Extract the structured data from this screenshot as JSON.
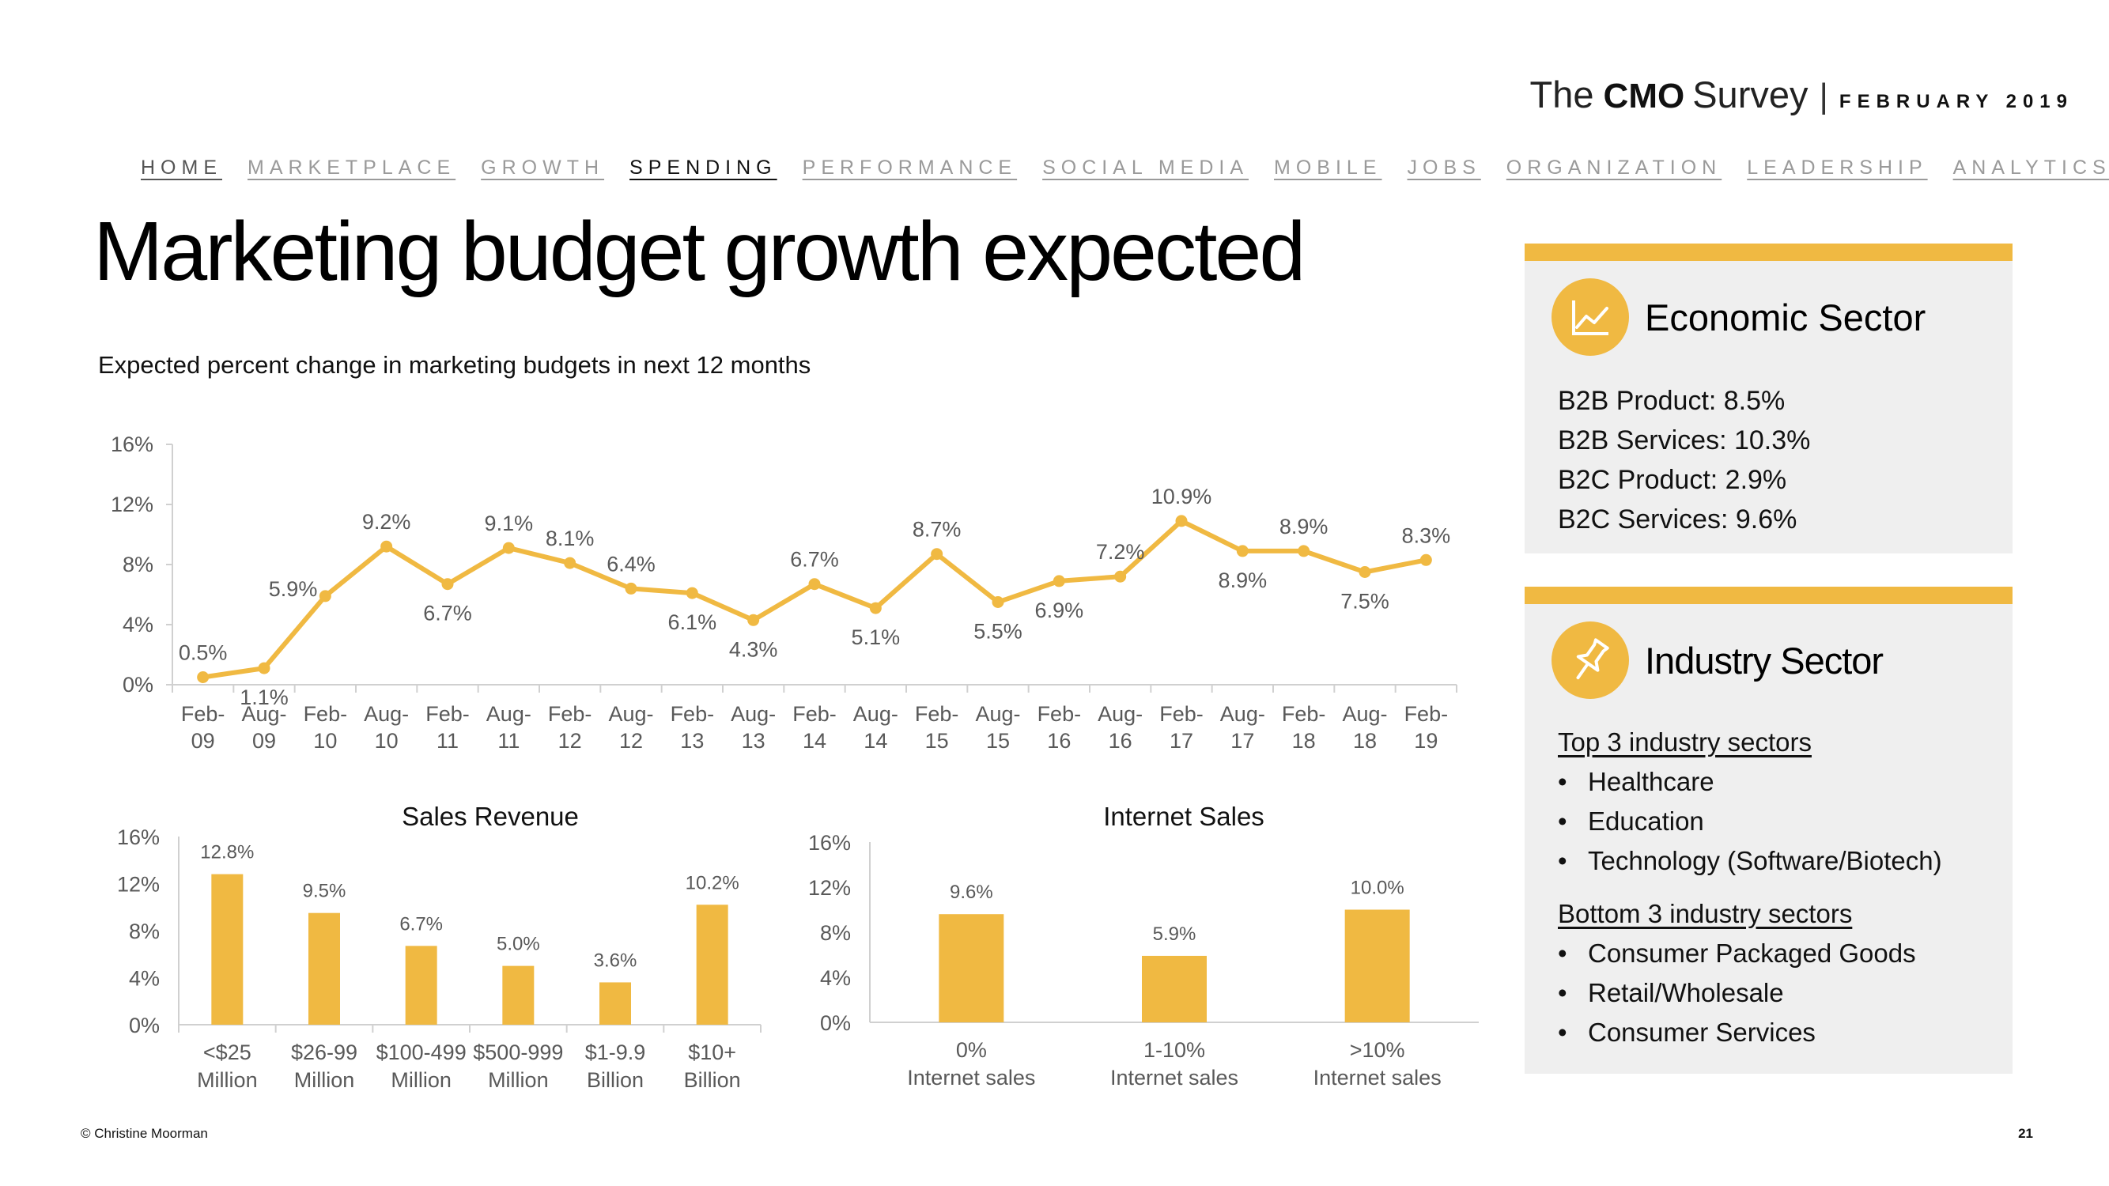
{
  "brand": {
    "the": "The",
    "cmo": "CMO",
    "survey": "Survey",
    "separator": "|",
    "date": "FEBRUARY 2019"
  },
  "nav": [
    "HOME",
    "MARKETPLACE",
    "GROWTH",
    "SPENDING",
    "PERFORMANCE",
    "SOCIAL MEDIA",
    "MOBILE",
    "JOBS",
    "ORGANIZATION",
    "LEADERSHIP",
    "ANALYTICS"
  ],
  "nav_active": "SPENDING",
  "title": "Marketing budget growth expected",
  "subtitle": "Expected percent change in marketing budgets in next 12 months",
  "colors": {
    "accent": "#f0b942",
    "panel": "#efefef",
    "axis": "#d0d0d0",
    "label": "#595959"
  },
  "chart_data": [
    {
      "type": "line",
      "title": "",
      "categories": [
        [
          "Feb-",
          "09"
        ],
        [
          "Aug-",
          "09"
        ],
        [
          "Feb-",
          "10"
        ],
        [
          "Aug-",
          "10"
        ],
        [
          "Feb-",
          "11"
        ],
        [
          "Aug-",
          "11"
        ],
        [
          "Feb-",
          "12"
        ],
        [
          "Aug-",
          "12"
        ],
        [
          "Feb-",
          "13"
        ],
        [
          "Aug-",
          "13"
        ],
        [
          "Feb-",
          "14"
        ],
        [
          "Aug-",
          "14"
        ],
        [
          "Feb-",
          "15"
        ],
        [
          "Aug-",
          "15"
        ],
        [
          "Feb-",
          "16"
        ],
        [
          "Aug-",
          "16"
        ],
        [
          "Feb-",
          "17"
        ],
        [
          "Aug-",
          "17"
        ],
        [
          "Feb-",
          "18"
        ],
        [
          "Aug-",
          "18"
        ],
        [
          "Feb-",
          "19"
        ]
      ],
      "values": [
        0.5,
        1.1,
        5.9,
        9.2,
        6.7,
        9.1,
        8.1,
        6.4,
        6.1,
        4.3,
        6.7,
        5.1,
        8.7,
        5.5,
        6.9,
        7.2,
        10.9,
        8.9,
        8.9,
        7.5,
        8.3
      ],
      "labels": [
        "0.5%",
        "1.1%",
        "5.9%",
        "9.2%",
        "6.7%",
        "9.1%",
        "8.1%",
        "6.4%",
        "6.1%",
        "4.3%",
        "6.7%",
        "5.1%",
        "8.7%",
        "5.5%",
        "6.9%",
        "7.2%",
        "10.9%",
        "8.9%",
        "8.9%",
        "7.5%",
        "8.3%"
      ],
      "label_pos": [
        "above",
        "below",
        "left",
        "above",
        "below",
        "above",
        "above",
        "above",
        "below",
        "below",
        "above",
        "below",
        "above",
        "below",
        "below",
        "above",
        "above",
        "below",
        "above",
        "below",
        "above"
      ],
      "yticks": [
        "0%",
        "4%",
        "8%",
        "12%",
        "16%"
      ],
      "ylim": [
        0,
        16
      ]
    },
    {
      "type": "bar",
      "title": "Sales Revenue",
      "categories": [
        [
          "<$25",
          "Million"
        ],
        [
          "$26-99",
          "Million"
        ],
        [
          "$100-499",
          "Million"
        ],
        [
          "$500-999",
          "Million"
        ],
        [
          "$1-9.9",
          "Billion"
        ],
        [
          "$10+",
          "Billion"
        ]
      ],
      "values": [
        12.8,
        9.5,
        6.7,
        5.0,
        3.6,
        10.2
      ],
      "labels": [
        "12.8%",
        "9.5%",
        "6.7%",
        "5.0%",
        "3.6%",
        "10.2%"
      ],
      "yticks": [
        "0%",
        "4%",
        "8%",
        "12%",
        "16%"
      ],
      "ylim": [
        0,
        16
      ]
    },
    {
      "type": "bar",
      "title": "Internet Sales",
      "categories": [
        [
          "0%",
          "Internet sales"
        ],
        [
          "1-10%",
          "Internet sales"
        ],
        [
          ">10%",
          "Internet sales"
        ]
      ],
      "values": [
        9.6,
        5.9,
        10.0
      ],
      "labels": [
        "9.6%",
        "5.9%",
        "10.0%"
      ],
      "yticks": [
        "0%",
        "4%",
        "8%",
        "12%",
        "16%"
      ],
      "ylim": [
        0,
        16
      ]
    }
  ],
  "economic": {
    "title": "Economic Sector",
    "icon": "line-chart-icon",
    "lines": [
      "B2B Product: 8.5%",
      "B2B Services: 10.3%",
      "B2C Product: 2.9%",
      "B2C Services: 9.6%"
    ]
  },
  "industry": {
    "title": "Industry Sector",
    "icon": "pushpin-icon",
    "top_heading": "Top 3 industry sectors",
    "top": [
      "Healthcare",
      "Education",
      "Technology (Software/Biotech)"
    ],
    "bottom_heading": "Bottom 3 industry sectors",
    "bottom": [
      "Consumer Packaged Goods",
      "Retail/Wholesale",
      "Consumer Services"
    ],
    "bullet": "•"
  },
  "footer": {
    "copyright": "© Christine Moorman",
    "page": "21"
  }
}
